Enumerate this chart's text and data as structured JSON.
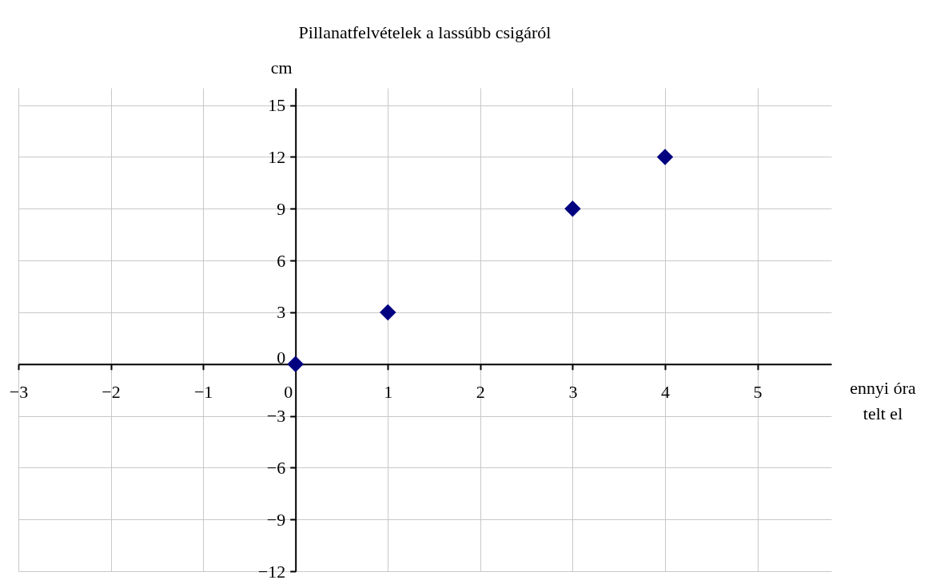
{
  "chart_data": {
    "type": "scatter",
    "title": "Pillanatfelvételek a lassúbb csigáról",
    "xlabel": "ennyi óra\ntelt el",
    "ylabel": "cm",
    "x": [
      0,
      1,
      3,
      4
    ],
    "series": [
      {
        "color": "#000080",
        "values": [
          0,
          3,
          9,
          12
        ]
      }
    ],
    "xlim": [
      -3,
      5.8
    ],
    "xticks": [
      -3,
      -2,
      -1,
      0,
      1,
      2,
      3,
      4,
      5
    ],
    "ylim": [
      -12,
      16
    ],
    "yticks": [
      -12,
      -9,
      -6,
      -3,
      0,
      3,
      6,
      9,
      12,
      15
    ],
    "grid": true,
    "marker": "diamond"
  }
}
